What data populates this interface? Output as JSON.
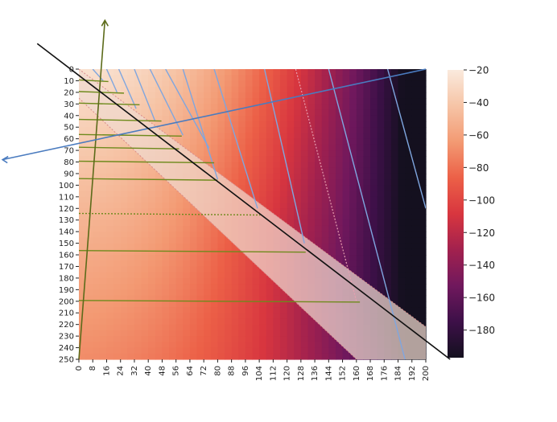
{
  "chart_data": {
    "type": "heatmap",
    "title": "",
    "xlabel": "",
    "ylabel": "",
    "x_tick_labels": [
      "0",
      "8",
      "16",
      "24",
      "32",
      "40",
      "48",
      "56",
      "64",
      "72",
      "80",
      "88",
      "96",
      "104",
      "112",
      "120",
      "128",
      "136",
      "144",
      "152",
      "160",
      "168",
      "176",
      "184",
      "192",
      "200"
    ],
    "y_tick_labels": [
      "0",
      "10",
      "20",
      "30",
      "40",
      "50",
      "60",
      "70",
      "80",
      "90",
      "100",
      "110",
      "120",
      "130",
      "140",
      "150",
      "160",
      "170",
      "180",
      "190",
      "200",
      "210",
      "220",
      "230",
      "240",
      "250"
    ],
    "xlim": [
      0,
      200
    ],
    "ylim": [
      0,
      250
    ],
    "y_axis_inverted": true,
    "colorbar": {
      "ticks": [
        "−20",
        "−40",
        "−60",
        "−80",
        "−100",
        "−120",
        "−140",
        "−160",
        "−180"
      ],
      "tick_values": [
        -20,
        -40,
        -60,
        -80,
        -100,
        -120,
        -140,
        -160,
        -180
      ],
      "range": [
        -197,
        -20
      ],
      "placement": "right"
    },
    "colormap": [
      "#faeadd",
      "#f6c4a6",
      "#f39a73",
      "#ec6047",
      "#d8363f",
      "#a2214e",
      "#70185d",
      "#3d1048",
      "#14101f"
    ],
    "overlays": {
      "diagonal_line": {
        "from": [
          -24,
          -22
        ],
        "to": [
          214,
          250
        ],
        "color": "#111111"
      },
      "band": {
        "upper": [
          [
            0,
            0
          ],
          [
            200,
            222
          ]
        ],
        "lower": [
          [
            0,
            25
          ],
          [
            160,
            250
          ]
        ],
        "color": "#f0d9cf"
      },
      "horizontal_lines": {
        "y": [
          10,
          20,
          30,
          44,
          57,
          68,
          80,
          95,
          125,
          157,
          200
        ],
        "color": "#6e8a1c"
      },
      "slanted_lines": {
        "color": "#7fa6df"
      },
      "blue_arrow": {
        "from": [
          200,
          0
        ],
        "to": [
          -44,
          78
        ],
        "color": "#4a7bbf"
      },
      "green_arrow": {
        "from": [
          0,
          250
        ],
        "to": [
          15,
          -42
        ],
        "color": "#5c6b1a"
      }
    }
  }
}
